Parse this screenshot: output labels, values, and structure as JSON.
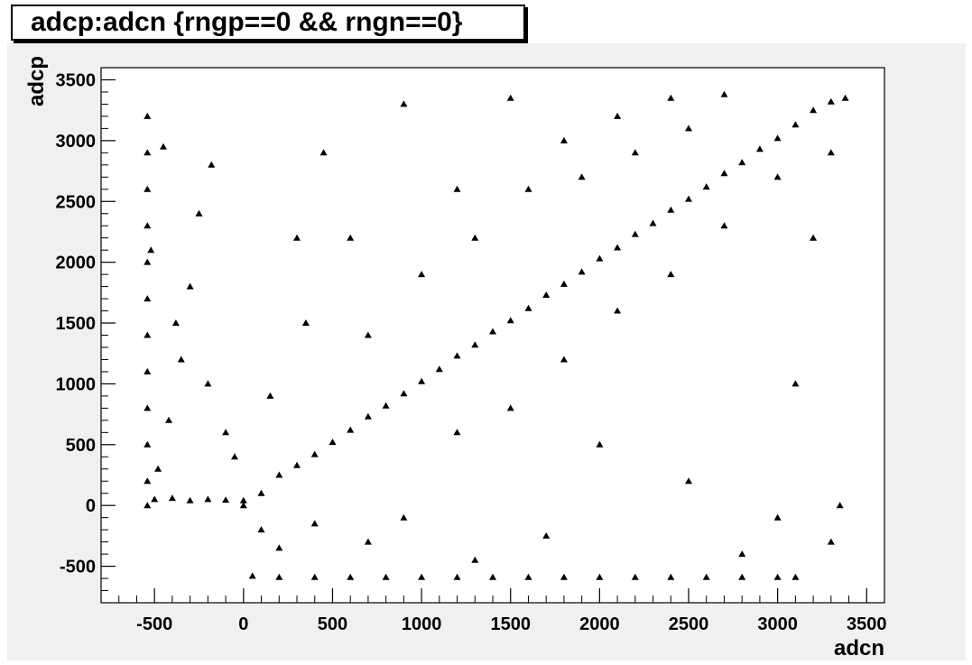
{
  "chart_data": {
    "type": "scatter",
    "title": "adcp:adcn {rngp==0 && rngn==0}",
    "xlabel": "adcn",
    "ylabel": "adcp",
    "xlim": [
      -800,
      3600
    ],
    "ylim": [
      -800,
      3600
    ],
    "x_ticks": [
      -500,
      0,
      500,
      1000,
      1500,
      2000,
      2500,
      3000,
      3500
    ],
    "y_ticks": [
      -500,
      0,
      500,
      1000,
      1500,
      2000,
      2500,
      3000,
      3500
    ],
    "x_tick_labels": [
      "-500",
      "0",
      "500",
      "1000",
      "1500",
      "2000",
      "2500",
      "3000",
      "3500"
    ],
    "y_tick_labels": [
      "-500",
      "0",
      "500",
      "1000",
      "1500",
      "2000",
      "2500",
      "3000",
      "3500"
    ],
    "grid": false,
    "marker": "triangle",
    "marker_color": "#000000",
    "background": "#ffffff",
    "frame_background": "#f0f0f0",
    "series": [
      {
        "values": [
          [
            -540,
            0
          ],
          [
            -540,
            200
          ],
          [
            -540,
            500
          ],
          [
            -540,
            800
          ],
          [
            -540,
            1100
          ],
          [
            -540,
            1400
          ],
          [
            -540,
            1700
          ],
          [
            -540,
            2000
          ],
          [
            -540,
            2300
          ],
          [
            -540,
            2600
          ],
          [
            -540,
            2900
          ],
          [
            -540,
            3200
          ],
          [
            -500,
            50
          ],
          [
            -400,
            60
          ],
          [
            -300,
            40
          ],
          [
            -200,
            50
          ],
          [
            -100,
            45
          ],
          [
            0,
            40
          ],
          [
            -480,
            300
          ],
          [
            -420,
            700
          ],
          [
            -350,
            1200
          ],
          [
            -300,
            1800
          ],
          [
            -250,
            2400
          ],
          [
            -180,
            2800
          ],
          [
            -450,
            2950
          ],
          [
            -520,
            2100
          ],
          [
            -380,
            1500
          ],
          [
            -200,
            1000
          ],
          [
            -100,
            600
          ],
          [
            -50,
            400
          ],
          [
            0,
            0
          ],
          [
            100,
            100
          ],
          [
            200,
            250
          ],
          [
            300,
            330
          ],
          [
            400,
            420
          ],
          [
            500,
            520
          ],
          [
            600,
            620
          ],
          [
            700,
            730
          ],
          [
            800,
            820
          ],
          [
            900,
            920
          ],
          [
            1000,
            1020
          ],
          [
            1100,
            1120
          ],
          [
            1200,
            1230
          ],
          [
            1300,
            1320
          ],
          [
            1400,
            1430
          ],
          [
            1500,
            1520
          ],
          [
            1600,
            1620
          ],
          [
            1700,
            1730
          ],
          [
            1800,
            1820
          ],
          [
            1900,
            1920
          ],
          [
            2000,
            2030
          ],
          [
            2100,
            2120
          ],
          [
            2200,
            2230
          ],
          [
            2300,
            2320
          ],
          [
            2400,
            2430
          ],
          [
            2500,
            2520
          ],
          [
            2600,
            2620
          ],
          [
            2700,
            2730
          ],
          [
            2800,
            2820
          ],
          [
            2900,
            2930
          ],
          [
            3000,
            3020
          ],
          [
            3100,
            3130
          ],
          [
            3200,
            3250
          ],
          [
            3300,
            3320
          ],
          [
            3380,
            3350
          ],
          [
            150,
            900
          ],
          [
            350,
            1500
          ],
          [
            600,
            2200
          ],
          [
            900,
            3300
          ],
          [
            1200,
            2600
          ],
          [
            1500,
            3350
          ],
          [
            1800,
            3000
          ],
          [
            2100,
            3200
          ],
          [
            2400,
            3350
          ],
          [
            2700,
            3380
          ],
          [
            300,
            2200
          ],
          [
            450,
            2900
          ],
          [
            700,
            1400
          ],
          [
            1000,
            1900
          ],
          [
            1300,
            2200
          ],
          [
            1600,
            2600
          ],
          [
            1900,
            2700
          ],
          [
            2200,
            2900
          ],
          [
            2500,
            3100
          ],
          [
            1200,
            600
          ],
          [
            1500,
            800
          ],
          [
            1800,
            1200
          ],
          [
            2100,
            1600
          ],
          [
            2400,
            1900
          ],
          [
            2700,
            2300
          ],
          [
            3000,
            2700
          ],
          [
            3300,
            2900
          ],
          [
            2000,
            500
          ],
          [
            2500,
            200
          ],
          [
            3000,
            -100
          ],
          [
            2800,
            -400
          ],
          [
            3100,
            1000
          ],
          [
            3200,
            2200
          ],
          [
            3350,
            0
          ],
          [
            3300,
            -300
          ],
          [
            50,
            -580
          ],
          [
            200,
            -590
          ],
          [
            400,
            -590
          ],
          [
            600,
            -590
          ],
          [
            800,
            -590
          ],
          [
            1000,
            -590
          ],
          [
            1200,
            -590
          ],
          [
            1400,
            -590
          ],
          [
            1600,
            -590
          ],
          [
            1800,
            -590
          ],
          [
            2000,
            -590
          ],
          [
            2200,
            -590
          ],
          [
            2400,
            -590
          ],
          [
            2600,
            -590
          ],
          [
            2800,
            -590
          ],
          [
            3000,
            -590
          ],
          [
            3100,
            -590
          ],
          [
            100,
            -200
          ],
          [
            200,
            -350
          ],
          [
            400,
            -150
          ],
          [
            700,
            -300
          ],
          [
            900,
            -100
          ],
          [
            1300,
            -450
          ],
          [
            1700,
            -250
          ]
        ]
      }
    ]
  }
}
